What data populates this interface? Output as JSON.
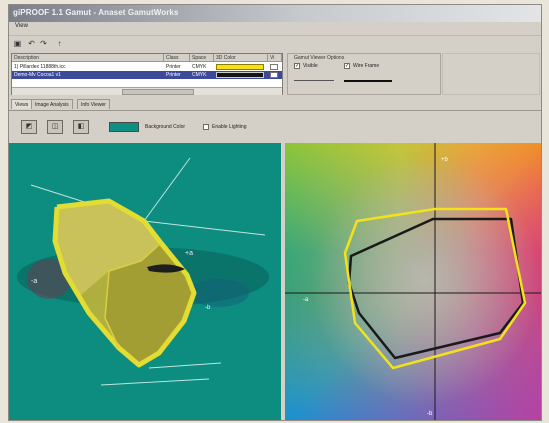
{
  "window": {
    "title": "giPROOF 1.1 Gamut - Anaset GamutWorks"
  },
  "menu": {
    "items": [
      "View"
    ]
  },
  "toolbar": {
    "icons": [
      "save-icon",
      "undo-icon",
      "redo-icon",
      "print-icon"
    ]
  },
  "profiles": {
    "columns": [
      "Description",
      "Class",
      "Space",
      "3D Color",
      "Vi"
    ],
    "rows": [
      {
        "description": "1) Pillardex 11888th.icc",
        "class": "Printer",
        "space": "CMYK",
        "color": "#f7e01a",
        "selected": false
      },
      {
        "description": "Demo-Mv Cocoa1 v1",
        "class": "Printer",
        "space": "CMYK",
        "color": "#151515",
        "selected": true
      }
    ]
  },
  "options": {
    "label": "Gamut Viewer Options",
    "visible_label": "Visible",
    "wireframe_label": "Wire Frame"
  },
  "tabs": [
    "Views",
    "Image Analysis",
    "Info Viewer"
  ],
  "view_controls": {
    "background_label": "Background Color",
    "lighting_label": "Enable Lighting",
    "background_color": "#0e8f83"
  },
  "plot2d": {
    "axis_top": "+b",
    "axis_left": "-a",
    "axis_bottom": "-b"
  },
  "plot3d": {
    "label_plus_a": "+a",
    "label_minus_a": "-a",
    "label_blue": "-b",
    "background_color": "#0d8c80"
  }
}
